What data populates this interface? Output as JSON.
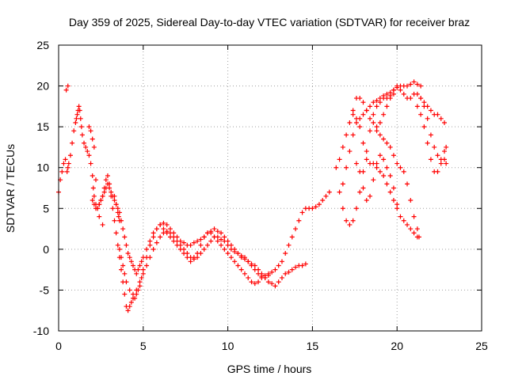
{
  "chart_data": {
    "type": "scatter",
    "title": "Day 359 of 2025, Sidereal Day-to-day VTEC variation (SDTVAR) for receiver braz",
    "xlabel": "GPS time / hours",
    "ylabel": "SDTVAR / TECUs",
    "xlim": [
      0,
      25
    ],
    "ylim": [
      -10,
      25
    ],
    "xticks": [
      "0",
      "5",
      "10",
      "15",
      "20",
      "25"
    ],
    "yticks": [
      "-10",
      "-5",
      "0",
      "5",
      "10",
      "15",
      "20",
      "25"
    ],
    "grid": true,
    "marker": "plus",
    "color": "#ff0000",
    "series": [
      {
        "x": [
          0.0,
          0.1,
          0.2,
          0.3,
          0.4,
          0.5,
          0.55,
          0.6,
          0.7,
          0.8,
          0.9,
          1.0,
          1.05,
          1.1,
          1.15,
          1.2,
          1.25,
          1.3,
          1.35,
          1.4,
          1.5,
          1.6,
          1.7,
          1.8,
          1.9,
          2.0,
          2.05,
          2.1,
          2.2,
          2.3,
          2.4,
          2.5,
          2.6,
          2.7,
          2.8,
          2.9,
          3.0,
          3.1,
          3.2,
          3.3,
          3.4,
          3.5,
          3.6,
          3.7,
          3.8,
          3.9,
          4.0,
          4.1,
          4.2,
          4.3,
          4.4,
          4.5,
          4.6,
          4.7,
          4.8,
          4.9,
          5.0,
          5.2,
          5.4,
          5.6,
          5.8,
          6.0,
          6.2,
          6.4,
          6.6,
          6.8,
          7.0,
          7.2,
          7.4,
          7.6,
          7.8,
          8.0,
          8.2,
          8.4,
          8.6,
          8.8,
          9.0,
          9.2,
          9.4,
          9.6,
          9.8,
          10.0,
          10.2,
          10.4,
          10.6,
          10.8,
          11.0,
          11.2,
          11.4,
          11.6,
          11.8,
          12.0,
          12.2,
          12.4,
          12.6,
          12.8,
          13.0,
          13.2,
          13.4,
          13.6,
          13.8,
          14.0,
          14.2,
          14.4,
          14.6,
          14.8,
          15.0,
          15.2,
          15.4,
          15.6,
          15.8,
          16.0
        ],
        "y": [
          7.0,
          8.5,
          9.5,
          10.5,
          11.0,
          9.5,
          10.0,
          10.5,
          11.5,
          13.0,
          14.5,
          15.5,
          16.0,
          16.5,
          17.0,
          17.5,
          17.0,
          16.0,
          15.0,
          14.0,
          13.0,
          12.5,
          12.0,
          11.5,
          10.5,
          9.0,
          7.5,
          6.5,
          5.5,
          5.0,
          5.5,
          6.0,
          6.5,
          7.5,
          8.5,
          9.0,
          8.0,
          6.5,
          5.0,
          3.5,
          2.0,
          0.5,
          -1.0,
          -2.5,
          -4.0,
          -5.5,
          -7.0,
          -7.5,
          -7.0,
          -6.5,
          -6.0,
          -6.0,
          -5.5,
          -5.0,
          -4.5,
          -3.5,
          -2.5,
          -1.0,
          0.5,
          1.5,
          2.5,
          3.0,
          2.5,
          2.0,
          1.5,
          1.0,
          0.5,
          0.0,
          -0.5,
          -1.0,
          -1.5,
          -1.0,
          -0.5,
          0.5,
          1.5,
          2.0,
          2.0,
          1.5,
          1.0,
          0.5,
          0.0,
          -0.5,
          -1.0,
          -1.5,
          -2.0,
          -2.5,
          -3.0,
          -3.5,
          -4.0,
          -4.2,
          -4.0,
          -3.5,
          -3.2,
          -3.0,
          -2.8,
          -2.5,
          -2.0,
          -1.5,
          -0.5,
          0.5,
          1.5,
          2.5,
          3.5,
          4.5,
          5.0,
          5.0,
          5.0,
          5.2,
          5.5,
          6.0,
          6.5,
          7.0
        ]
      },
      {
        "x": [
          2.0,
          2.1,
          2.2,
          2.3,
          2.4,
          2.5,
          2.6,
          2.7,
          2.8,
          2.9,
          3.0,
          3.1,
          3.2,
          3.3,
          3.4,
          3.5,
          3.6,
          3.7,
          3.8,
          3.9,
          4.0,
          4.1,
          4.2,
          4.3,
          4.4,
          4.5,
          4.6,
          4.7,
          4.8,
          4.9,
          5.0,
          5.2,
          5.4,
          5.6,
          5.8,
          6.0,
          6.2,
          6.4,
          6.6,
          6.8,
          7.0,
          7.2,
          7.4,
          7.6,
          7.8,
          8.0,
          8.2,
          8.4,
          8.6,
          8.8,
          9.0,
          9.2,
          9.4,
          9.6,
          9.8,
          10.0,
          10.2,
          10.4,
          10.6,
          10.8,
          11.0,
          11.2,
          11.4,
          11.6,
          11.8,
          12.0,
          12.2,
          12.4,
          12.6,
          12.8,
          13.0,
          13.2,
          13.4,
          13.6,
          13.8,
          14.0,
          14.2,
          14.4,
          14.6
        ],
        "y": [
          6.0,
          5.5,
          5.0,
          5.0,
          5.5,
          6.0,
          6.5,
          7.0,
          7.5,
          8.0,
          7.5,
          7.0,
          6.5,
          6.0,
          5.5,
          5.0,
          4.5,
          3.5,
          2.5,
          1.5,
          0.5,
          -0.5,
          -1.0,
          -1.5,
          -2.0,
          -2.5,
          -3.0,
          -2.5,
          -2.0,
          -1.5,
          -1.0,
          0.0,
          1.0,
          2.0,
          2.5,
          3.0,
          3.2,
          3.0,
          2.5,
          2.0,
          1.5,
          1.0,
          0.8,
          0.5,
          0.5,
          0.8,
          1.0,
          1.2,
          1.5,
          2.0,
          2.2,
          2.5,
          2.2,
          2.0,
          1.5,
          1.0,
          0.5,
          0.0,
          -0.5,
          -1.0,
          -1.2,
          -1.5,
          -1.8,
          -2.0,
          -2.5,
          -3.0,
          -3.5,
          -4.0,
          -4.2,
          -4.5,
          -4.0,
          -3.5,
          -3.0,
          -2.8,
          -2.5,
          -2.2,
          -2.0,
          -2.0,
          -1.8
        ]
      },
      {
        "x": [
          3.6,
          3.7,
          3.8,
          3.9,
          4.0,
          4.2,
          4.4,
          4.6,
          4.8,
          5.0,
          5.2,
          5.4,
          5.6,
          5.8,
          6.0,
          6.2,
          6.4,
          6.6,
          6.8,
          7.0,
          7.2,
          7.4,
          7.6,
          7.8,
          8.0,
          8.2,
          8.4,
          8.6,
          8.8,
          9.0,
          9.2,
          9.4,
          9.6,
          9.8,
          10.0,
          10.2,
          10.4,
          10.6,
          10.8,
          11.0,
          11.2,
          11.4,
          11.6,
          11.8,
          12.0,
          12.2,
          12.4
        ],
        "y": [
          0.0,
          -1.0,
          -2.0,
          -3.0,
          -4.0,
          -5.0,
          -5.5,
          -5.0,
          -4.0,
          -3.0,
          -2.0,
          -1.0,
          0.0,
          0.8,
          1.5,
          2.0,
          2.2,
          2.0,
          1.5,
          1.0,
          0.5,
          0.0,
          -0.5,
          -1.0,
          -1.2,
          -1.0,
          -0.5,
          0.0,
          0.5,
          1.0,
          1.5,
          1.5,
          1.2,
          1.0,
          0.5,
          0.0,
          -0.3,
          -0.5,
          -0.8,
          -1.0,
          -1.5,
          -2.0,
          -2.5,
          -3.0,
          -3.3,
          -3.5,
          -3.2
        ]
      },
      {
        "x": [
          0.45,
          0.55,
          1.8,
          1.9,
          2.0,
          2.1,
          2.2,
          2.4,
          2.6,
          3.3,
          3.4,
          3.5,
          3.55,
          3.6
        ],
        "y": [
          19.5,
          20.0,
          15.0,
          14.5,
          13.5,
          12.5,
          8.5,
          4.0,
          3.0,
          6.5,
          5.5,
          4.5,
          4.0,
          3.5
        ]
      },
      {
        "x": [
          16.4,
          16.6,
          16.8,
          17.0,
          17.2,
          17.4,
          17.6,
          17.8,
          18.0,
          18.2,
          18.4,
          18.6,
          18.8,
          19.0,
          19.2,
          19.4,
          19.6,
          19.8,
          20.0,
          20.2,
          20.4,
          20.6,
          20.8,
          21.0,
          21.2,
          21.4,
          21.6,
          21.8,
          22.0,
          22.2,
          22.4,
          22.6,
          22.8
        ],
        "y": [
          10.0,
          11.0,
          12.5,
          14.0,
          15.5,
          17.0,
          18.5,
          18.5,
          18.0,
          17.0,
          16.0,
          15.5,
          15.0,
          15.5,
          16.5,
          17.5,
          18.5,
          19.5,
          20.0,
          19.5,
          19.0,
          18.5,
          18.5,
          19.0,
          19.0,
          18.5,
          18.0,
          17.5,
          17.0,
          16.5,
          16.5,
          16.0,
          15.5
        ]
      },
      {
        "x": [
          16.6,
          16.8,
          17.0,
          17.2,
          17.4,
          17.6,
          17.8,
          18.0,
          18.2,
          18.4,
          18.6,
          18.8,
          19.0,
          19.2,
          19.4,
          19.6,
          19.8,
          20.0,
          20.2,
          20.4,
          20.6,
          20.8,
          21.0,
          21.2,
          21.4
        ],
        "y": [
          7.0,
          8.0,
          10.0,
          12.0,
          14.0,
          15.5,
          16.0,
          16.5,
          17.0,
          17.5,
          18.0,
          18.2,
          18.5,
          18.8,
          19.0,
          19.2,
          19.5,
          19.8,
          20.0,
          20.0,
          20.0,
          20.2,
          20.5,
          20.2,
          20.0
        ]
      },
      {
        "x": [
          16.8,
          17.0,
          17.2,
          17.4,
          17.6,
          17.8,
          18.0,
          18.2,
          18.4,
          18.6,
          18.8,
          19.0,
          19.2,
          19.4,
          19.6,
          19.8
        ],
        "y": [
          5.0,
          3.5,
          3.0,
          3.5,
          5.0,
          7.0,
          9.5,
          12.0,
          14.5,
          16.5,
          17.5,
          18.0,
          18.5,
          18.5,
          18.8,
          19.0
        ]
      },
      {
        "x": [
          17.4,
          17.6,
          17.8,
          18.0,
          18.2,
          18.4,
          18.6,
          18.8,
          19.0,
          19.2,
          19.4,
          19.6,
          19.8,
          20.0,
          20.2,
          20.4,
          20.6,
          20.8,
          21.0,
          21.2
        ],
        "y": [
          16.5,
          16.0,
          15.0,
          13.0,
          11.0,
          10.5,
          10.5,
          10.0,
          9.5,
          9.0,
          8.0,
          7.0,
          6.0,
          5.0,
          4.0,
          3.5,
          3.0,
          2.5,
          2.0,
          1.5
        ]
      },
      {
        "x": [
          17.6,
          17.8,
          18.0,
          18.2,
          18.4,
          18.6,
          18.8,
          19.0,
          19.2,
          19.4,
          19.6,
          19.8,
          20.0
        ],
        "y": [
          10.5,
          9.5,
          7.5,
          6.0,
          6.5,
          8.5,
          10.5,
          11.5,
          11.0,
          10.0,
          9.0,
          7.5,
          5.5
        ]
      },
      {
        "x": [
          18.8,
          19.0,
          19.2,
          19.4,
          19.6,
          19.8,
          20.0,
          20.2,
          20.4,
          20.6,
          20.8,
          21.0,
          21.2,
          21.3
        ],
        "y": [
          14.5,
          14.0,
          13.5,
          13.0,
          12.5,
          11.5,
          10.5,
          10.0,
          9.5,
          8.0,
          6.0,
          4.0,
          2.5,
          1.5
        ]
      },
      {
        "x": [
          21.4,
          21.6,
          21.8,
          22.0,
          22.2,
          22.4,
          22.6,
          22.8,
          22.9
        ],
        "y": [
          18.5,
          17.5,
          16.0,
          14.0,
          12.5,
          11.5,
          11.0,
          11.0,
          10.5
        ]
      },
      {
        "x": [
          21.2,
          21.4,
          21.6,
          21.8,
          22.0,
          22.2,
          22.4,
          22.6,
          22.8,
          22.9
        ],
        "y": [
          17.5,
          16.5,
          15.0,
          13.0,
          11.0,
          9.5,
          9.5,
          10.5,
          12.0,
          12.5
        ]
      }
    ]
  }
}
